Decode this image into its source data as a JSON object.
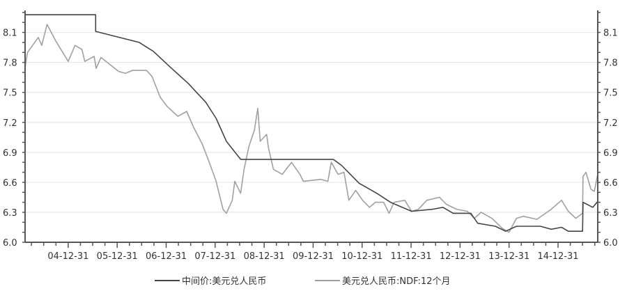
{
  "chart_data": {
    "type": "line",
    "title": "",
    "xlabel": "",
    "ylabel": "",
    "xlim": [
      2004.12,
      2015.81
    ],
    "ylim": [
      6.0,
      8.32
    ],
    "grid": true,
    "legend_position": "bottom",
    "y_ticks": [
      6.0,
      6.3,
      6.6,
      6.9,
      7.2,
      7.5,
      7.8,
      8.1
    ],
    "y_tick_labels": [
      "6.0",
      "6.3",
      "6.6",
      "6.9",
      "7.2",
      "7.5",
      "7.8",
      "8.1"
    ],
    "x_ticks": [
      2005,
      2006,
      2007,
      2008,
      2009,
      2010,
      2011,
      2012,
      2013,
      2014,
      2015
    ],
    "x_tick_labels": [
      "04-12-31",
      "05-12-31",
      "06-12-31",
      "07-12-31",
      "08-12-31",
      "09-12-31",
      "10-12-31",
      "11-12-31",
      "12-12-31",
      "13-12-31",
      "14-12-31"
    ],
    "series": [
      {
        "name": "中间价:美元兑人民币",
        "color": "#444444",
        "x": [
          2004.12,
          2005.56,
          2005.56,
          2006.45,
          2006.74,
          2007.09,
          2007.45,
          2007.81,
          2008.02,
          2008.23,
          2008.52,
          2010.41,
          2010.58,
          2010.94,
          2011.3,
          2011.58,
          2012.01,
          2012.44,
          2012.65,
          2012.86,
          2013.22,
          2013.36,
          2013.72,
          2013.93,
          2014.15,
          2014.64,
          2014.86,
          2015.07,
          2015.21,
          2015.5,
          2015.51,
          2015.71,
          2015.81
        ],
        "y": [
          8.277,
          8.277,
          8.11,
          8.0,
          7.91,
          7.75,
          7.59,
          7.4,
          7.24,
          7.01,
          6.83,
          6.83,
          6.77,
          6.59,
          6.49,
          6.4,
          6.31,
          6.33,
          6.35,
          6.29,
          6.29,
          6.19,
          6.16,
          6.11,
          6.16,
          6.16,
          6.13,
          6.15,
          6.11,
          6.11,
          6.4,
          6.35,
          6.41
        ]
      },
      {
        "name": "美元兑人民币:NDF:12个月",
        "color": "#a0a0a0",
        "x": [
          2004.12,
          2004.17,
          2004.39,
          2004.46,
          2004.57,
          2004.74,
          2005.0,
          2005.14,
          2005.28,
          2005.34,
          2005.53,
          2005.57,
          2005.67,
          2006.03,
          2006.17,
          2006.31,
          2006.45,
          2006.6,
          2006.71,
          2006.88,
          2007.02,
          2007.24,
          2007.42,
          2007.56,
          2007.74,
          2007.88,
          2008.02,
          2008.16,
          2008.23,
          2008.35,
          2008.4,
          2008.52,
          2008.59,
          2008.69,
          2008.8,
          2008.87,
          2008.92,
          2009.05,
          2009.09,
          2009.19,
          2009.37,
          2009.56,
          2009.73,
          2009.8,
          2010.16,
          2010.3,
          2010.37,
          2010.51,
          2010.63,
          2010.73,
          2010.87,
          2011.01,
          2011.15,
          2011.27,
          2011.44,
          2011.55,
          2011.65,
          2011.87,
          2012.01,
          2012.15,
          2012.32,
          2012.58,
          2012.72,
          2012.93,
          2013.15,
          2013.29,
          2013.43,
          2013.65,
          2013.86,
          2014.0,
          2014.15,
          2014.29,
          2014.57,
          2014.86,
          2015.07,
          2015.21,
          2015.36,
          2015.5,
          2015.51,
          2015.57,
          2015.67,
          2015.74,
          2015.81
        ],
        "y": [
          7.75,
          7.9,
          8.05,
          7.97,
          8.18,
          8.02,
          7.81,
          7.97,
          7.93,
          7.81,
          7.86,
          7.74,
          7.85,
          7.71,
          7.69,
          7.72,
          7.72,
          7.72,
          7.66,
          7.45,
          7.36,
          7.26,
          7.31,
          7.15,
          6.98,
          6.8,
          6.61,
          6.33,
          6.29,
          6.42,
          6.61,
          6.49,
          6.73,
          6.96,
          7.12,
          7.34,
          7.01,
          7.08,
          6.94,
          6.73,
          6.68,
          6.8,
          6.68,
          6.61,
          6.63,
          6.61,
          6.8,
          6.68,
          6.7,
          6.42,
          6.52,
          6.42,
          6.35,
          6.4,
          6.4,
          6.29,
          6.4,
          6.42,
          6.31,
          6.33,
          6.42,
          6.45,
          6.38,
          6.33,
          6.31,
          6.24,
          6.3,
          6.24,
          6.14,
          6.1,
          6.24,
          6.26,
          6.23,
          6.33,
          6.42,
          6.31,
          6.24,
          6.29,
          6.66,
          6.7,
          6.53,
          6.51,
          6.68
        ]
      }
    ]
  }
}
